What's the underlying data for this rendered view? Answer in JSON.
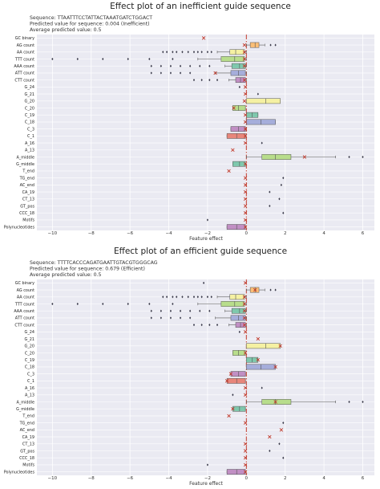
{
  "chart_data": [
    {
      "type": "box",
      "title": "Effect plot of an inefficient guide sequence",
      "info_lines": [
        "Sequence: TTAATTTCCTATTACTAAATGATCTGGACT",
        "Predicted value for sequence: 0.004 (Inefficient)",
        "Average predicted value: 0.5"
      ],
      "xlabel": "Feature effect",
      "xlim": [
        -10.8,
        6.6
      ],
      "xticks": [
        "−10",
        "−8",
        "−6",
        "−4",
        "−2",
        "0",
        "2",
        "4",
        "6"
      ],
      "xtick_values": [
        -10,
        -8,
        -6,
        -4,
        -2,
        0,
        2,
        4,
        6
      ],
      "reference_line": 0,
      "grid": true,
      "categories": [
        "GC binary",
        "AG count",
        "AA count",
        "TTT count",
        "AAA count",
        "ATT count",
        "CTT count",
        "G_24",
        "G_21",
        "G_20",
        "C_20",
        "C_19",
        "C_18",
        "C_3",
        "C_1",
        "A_16",
        "A_13",
        "A_middle",
        "G_middle",
        "T_end",
        "TG_end",
        "AC_end",
        "CA_19",
        "CT_13",
        "GT_pos",
        "CCC_18",
        "Motifs",
        "Polynucleotides"
      ],
      "boxes": [
        {
          "feature": "GC binary",
          "q1": null,
          "median": null,
          "q3": null,
          "whisker_low": null,
          "whisker_high": null,
          "outliers": [],
          "marker": -2.2
        },
        {
          "feature": "AG count",
          "q1": 0.2,
          "median": 0.45,
          "q3": 0.65,
          "whisker_low": 0.0,
          "whisker_high": 0.95,
          "outliers": [
            1.25,
            1.5
          ],
          "marker": -0.1
        },
        {
          "feature": "AA count",
          "q1": -0.85,
          "median": -0.55,
          "q3": -0.1,
          "whisker_low": -1.5,
          "whisker_high": 0.0,
          "outliers": [
            -4.3,
            -4.1,
            -3.8,
            -3.6,
            -3.3,
            -3.0,
            -2.7,
            -2.5,
            -2.3,
            -2.0,
            -1.8
          ],
          "marker": -0.1
        },
        {
          "feature": "TTT count",
          "q1": -1.3,
          "median": -0.6,
          "q3": -0.1,
          "whisker_low": -2.5,
          "whisker_high": 0.0,
          "outliers": [
            -10.0,
            -8.7,
            -7.4,
            -6.1,
            -5.0,
            -3.8
          ],
          "marker": -0.1
        },
        {
          "feature": "AAA count",
          "q1": -0.75,
          "median": -0.35,
          "q3": -0.05,
          "whisker_low": -1.1,
          "whisker_high": 0.0,
          "outliers": [
            -4.9,
            -4.4,
            -3.9,
            -3.4,
            -2.9,
            -2.4,
            -1.9
          ],
          "marker": -0.1
        },
        {
          "feature": "ATT count",
          "q1": -0.8,
          "median": -0.4,
          "q3": -0.05,
          "whisker_low": -1.6,
          "whisker_high": 0.0,
          "outliers": [
            -4.9,
            -4.4,
            -3.9,
            -3.4,
            -2.9
          ],
          "marker": -1.6
        },
        {
          "feature": "CTT count",
          "q1": -0.55,
          "median": -0.3,
          "q3": -0.05,
          "whisker_low": -0.9,
          "whisker_high": 0.0,
          "outliers": [
            -2.7,
            -2.3,
            -1.9,
            -1.5
          ],
          "marker": -0.1
        },
        {
          "feature": "G_24",
          "q1": null,
          "median": null,
          "q3": null,
          "whisker_low": null,
          "whisker_high": null,
          "outliers": [
            -0.35
          ],
          "marker": -0.05
        },
        {
          "feature": "G_21",
          "q1": null,
          "median": null,
          "q3": null,
          "whisker_low": null,
          "whisker_high": null,
          "outliers": [
            0.6
          ],
          "marker": -0.05
        },
        {
          "feature": "G_20",
          "q1": 0.0,
          "median": 1.0,
          "q3": 1.75,
          "whisker_low": 0.0,
          "whisker_high": 1.75,
          "outliers": [],
          "marker": -0.1
        },
        {
          "feature": "C_20",
          "q1": -0.7,
          "median": -0.4,
          "q3": -0.05,
          "whisker_low": -0.7,
          "whisker_high": -0.05,
          "outliers": [],
          "marker": -0.65
        },
        {
          "feature": "C_19",
          "q1": 0.0,
          "median": 0.3,
          "q3": 0.6,
          "whisker_low": 0.0,
          "whisker_high": 0.6,
          "outliers": [],
          "marker": -0.05
        },
        {
          "feature": "C_18",
          "q1": 0.0,
          "median": 0.75,
          "q3": 1.5,
          "whisker_low": 0.0,
          "whisker_high": 1.5,
          "outliers": [],
          "marker": -0.05
        },
        {
          "feature": "C_3",
          "q1": -0.8,
          "median": -0.4,
          "q3": -0.05,
          "whisker_low": -0.8,
          "whisker_high": -0.05,
          "outliers": [],
          "marker": -0.05
        },
        {
          "feature": "C_1",
          "q1": -1.0,
          "median": -0.5,
          "q3": -0.05,
          "whisker_low": -1.0,
          "whisker_high": -0.05,
          "outliers": [],
          "marker": -0.05
        },
        {
          "feature": "A_16",
          "q1": null,
          "median": null,
          "q3": null,
          "whisker_low": null,
          "whisker_high": null,
          "outliers": [
            0.8
          ],
          "marker": -0.05
        },
        {
          "feature": "A_13",
          "q1": null,
          "median": null,
          "q3": null,
          "whisker_low": null,
          "whisker_high": null,
          "outliers": [],
          "marker": -0.7
        },
        {
          "feature": "A_middle",
          "q1": 0.8,
          "median": 1.5,
          "q3": 2.3,
          "whisker_low": 0.0,
          "whisker_high": 4.6,
          "outliers": [
            5.3,
            6.0
          ],
          "marker": 3.0
        },
        {
          "feature": "G_middle",
          "q1": -0.7,
          "median": -0.35,
          "q3": -0.05,
          "whisker_low": -0.7,
          "whisker_high": -0.05,
          "outliers": [],
          "marker": -0.05
        },
        {
          "feature": "T_end",
          "q1": null,
          "median": null,
          "q3": null,
          "whisker_low": null,
          "whisker_high": null,
          "outliers": [],
          "marker": -0.9
        },
        {
          "feature": "TG_end",
          "q1": null,
          "median": null,
          "q3": null,
          "whisker_low": null,
          "whisker_high": null,
          "outliers": [
            1.9
          ],
          "marker": -0.05
        },
        {
          "feature": "AC_end",
          "q1": null,
          "median": null,
          "q3": null,
          "whisker_low": null,
          "whisker_high": null,
          "outliers": [
            1.8
          ],
          "marker": -0.05
        },
        {
          "feature": "CA_19",
          "q1": null,
          "median": null,
          "q3": null,
          "whisker_low": null,
          "whisker_high": null,
          "outliers": [
            1.2
          ],
          "marker": -0.05
        },
        {
          "feature": "CT_13",
          "q1": null,
          "median": null,
          "q3": null,
          "whisker_low": null,
          "whisker_high": null,
          "outliers": [
            1.7
          ],
          "marker": -0.05
        },
        {
          "feature": "GT_pos",
          "q1": null,
          "median": null,
          "q3": null,
          "whisker_low": null,
          "whisker_high": null,
          "outliers": [
            1.2
          ],
          "marker": -0.05
        },
        {
          "feature": "CCC_18",
          "q1": null,
          "median": null,
          "q3": null,
          "whisker_low": null,
          "whisker_high": null,
          "outliers": [
            1.9
          ],
          "marker": -0.05
        },
        {
          "feature": "Motifs",
          "q1": null,
          "median": null,
          "q3": null,
          "whisker_low": null,
          "whisker_high": null,
          "outliers": [
            -2.0
          ],
          "marker": -0.05
        },
        {
          "feature": "Polynucleotides",
          "q1": -1.0,
          "median": -0.5,
          "q3": -0.05,
          "whisker_low": -1.0,
          "whisker_high": -0.05,
          "outliers": [],
          "marker": -0.05
        }
      ]
    },
    {
      "type": "box",
      "title": "Effect plot of an efficient guide sequence",
      "info_lines": [
        "Sequence: TTTTCACCCAGATGAATTGTACGTGGGCAG",
        "Predicted value for sequence: 0.679 (Efficient)",
        "Average predicted value: 0.5"
      ],
      "xlabel": "Feature effect",
      "xlim": [
        -10.8,
        6.6
      ],
      "xticks": [
        "−10",
        "−8",
        "−6",
        "−4",
        "−2",
        "0",
        "2",
        "4",
        "6"
      ],
      "xtick_values": [
        -10,
        -8,
        -6,
        -4,
        -2,
        0,
        2,
        4,
        6
      ],
      "reference_line": 0,
      "grid": true,
      "categories": [
        "GC binary",
        "AG count",
        "AA count",
        "TTT count",
        "AAA count",
        "ATT count",
        "CTT count",
        "G_24",
        "G_21",
        "G_20",
        "C_20",
        "C_19",
        "C_18",
        "C_3",
        "C_1",
        "A_16",
        "A_13",
        "A_middle",
        "G_middle",
        "T_end",
        "TG_end",
        "AC_end",
        "CA_19",
        "CT_13",
        "GT_pos",
        "CCC_18",
        "Motifs",
        "Polynucleotides"
      ],
      "boxes": [
        {
          "feature": "GC binary",
          "q1": null,
          "median": null,
          "q3": null,
          "whisker_low": null,
          "whisker_high": null,
          "outliers": [
            -2.2
          ],
          "marker": -0.05
        },
        {
          "feature": "AG count",
          "q1": 0.2,
          "median": 0.45,
          "q3": 0.65,
          "whisker_low": 0.0,
          "whisker_high": 0.95,
          "outliers": [
            1.25,
            1.5
          ],
          "marker": 0.45
        },
        {
          "feature": "AA count",
          "q1": -0.85,
          "median": -0.55,
          "q3": -0.1,
          "whisker_low": -1.5,
          "whisker_high": 0.0,
          "outliers": [
            -4.3,
            -4.1,
            -3.8,
            -3.6,
            -3.3,
            -3.0,
            -2.7,
            -2.5,
            -2.3,
            -2.0,
            -1.8
          ],
          "marker": -0.1
        },
        {
          "feature": "TTT count",
          "q1": -1.3,
          "median": -0.6,
          "q3": -0.1,
          "whisker_low": -2.5,
          "whisker_high": 0.0,
          "outliers": [
            -10.0,
            -8.7,
            -7.4,
            -6.1,
            -5.0,
            -3.8
          ],
          "marker": -0.1
        },
        {
          "feature": "AAA count",
          "q1": -0.75,
          "median": -0.35,
          "q3": -0.05,
          "whisker_low": -1.1,
          "whisker_high": 0.0,
          "outliers": [
            -4.9,
            -4.4,
            -3.9,
            -3.4,
            -2.9,
            -2.4,
            -1.9
          ],
          "marker": -0.1
        },
        {
          "feature": "ATT count",
          "q1": -0.8,
          "median": -0.4,
          "q3": -0.05,
          "whisker_low": -1.6,
          "whisker_high": 0.0,
          "outliers": [
            -4.9,
            -4.4,
            -3.9,
            -3.4,
            -2.9
          ],
          "marker": -0.1
        },
        {
          "feature": "CTT count",
          "q1": -0.55,
          "median": -0.3,
          "q3": -0.05,
          "whisker_low": -0.9,
          "whisker_high": 0.0,
          "outliers": [
            -2.7,
            -2.3,
            -1.9,
            -1.5
          ],
          "marker": -0.1
        },
        {
          "feature": "G_24",
          "q1": null,
          "median": null,
          "q3": null,
          "whisker_low": null,
          "whisker_high": null,
          "outliers": [
            -0.35
          ],
          "marker": -0.05
        },
        {
          "feature": "G_21",
          "q1": null,
          "median": null,
          "q3": null,
          "whisker_low": null,
          "whisker_high": null,
          "outliers": [],
          "marker": 0.6
        },
        {
          "feature": "G_20",
          "q1": 0.0,
          "median": 1.0,
          "q3": 1.75,
          "whisker_low": 0.0,
          "whisker_high": 1.75,
          "outliers": [],
          "marker": 1.75
        },
        {
          "feature": "C_20",
          "q1": -0.7,
          "median": -0.4,
          "q3": -0.05,
          "whisker_low": -0.7,
          "whisker_high": -0.05,
          "outliers": [],
          "marker": -0.05
        },
        {
          "feature": "C_19",
          "q1": 0.0,
          "median": 0.3,
          "q3": 0.6,
          "whisker_low": 0.0,
          "whisker_high": 0.6,
          "outliers": [],
          "marker": 0.6
        },
        {
          "feature": "C_18",
          "q1": 0.0,
          "median": 0.75,
          "q3": 1.5,
          "whisker_low": 0.0,
          "whisker_high": 1.5,
          "outliers": [],
          "marker": 1.5
        },
        {
          "feature": "C_3",
          "q1": -0.8,
          "median": -0.4,
          "q3": -0.05,
          "whisker_low": -0.8,
          "whisker_high": -0.05,
          "outliers": [],
          "marker": -0.8
        },
        {
          "feature": "C_1",
          "q1": -1.0,
          "median": -0.5,
          "q3": -0.05,
          "whisker_low": -1.0,
          "whisker_high": -0.05,
          "outliers": [],
          "marker": -1.0
        },
        {
          "feature": "A_16",
          "q1": null,
          "median": null,
          "q3": null,
          "whisker_low": null,
          "whisker_high": null,
          "outliers": [
            0.8
          ],
          "marker": -0.05
        },
        {
          "feature": "A_13",
          "q1": null,
          "median": null,
          "q3": null,
          "whisker_low": null,
          "whisker_high": null,
          "outliers": [
            -0.7
          ],
          "marker": -0.05
        },
        {
          "feature": "A_middle",
          "q1": 0.8,
          "median": 1.5,
          "q3": 2.3,
          "whisker_low": 0.0,
          "whisker_high": 4.6,
          "outliers": [
            5.3,
            6.0
          ],
          "marker": 1.5
        },
        {
          "feature": "G_middle",
          "q1": -0.7,
          "median": -0.35,
          "q3": -0.05,
          "whisker_low": -0.7,
          "whisker_high": -0.05,
          "outliers": [],
          "marker": -0.7
        },
        {
          "feature": "T_end",
          "q1": null,
          "median": null,
          "q3": null,
          "whisker_low": null,
          "whisker_high": null,
          "outliers": [],
          "marker": -0.9
        },
        {
          "feature": "TG_end",
          "q1": null,
          "median": null,
          "q3": null,
          "whisker_low": null,
          "whisker_high": null,
          "outliers": [
            1.9
          ],
          "marker": -0.05
        },
        {
          "feature": "AC_end",
          "q1": null,
          "median": null,
          "q3": null,
          "whisker_low": null,
          "whisker_high": null,
          "outliers": [],
          "marker": 1.8
        },
        {
          "feature": "CA_19",
          "q1": null,
          "median": null,
          "q3": null,
          "whisker_low": null,
          "whisker_high": null,
          "outliers": [],
          "marker": 1.2
        },
        {
          "feature": "CT_13",
          "q1": null,
          "median": null,
          "q3": null,
          "whisker_low": null,
          "whisker_high": null,
          "outliers": [
            1.7
          ],
          "marker": -0.05
        },
        {
          "feature": "GT_pos",
          "q1": null,
          "median": null,
          "q3": null,
          "whisker_low": null,
          "whisker_high": null,
          "outliers": [
            1.2
          ],
          "marker": -0.05
        },
        {
          "feature": "CCC_18",
          "q1": null,
          "median": null,
          "q3": null,
          "whisker_low": null,
          "whisker_high": null,
          "outliers": [
            1.9
          ],
          "marker": -0.05
        },
        {
          "feature": "Motifs",
          "q1": null,
          "median": null,
          "q3": null,
          "whisker_low": null,
          "whisker_high": null,
          "outliers": [
            -2.0
          ],
          "marker": -0.05
        },
        {
          "feature": "Polynucleotides",
          "q1": -1.0,
          "median": -0.5,
          "q3": -0.05,
          "whisker_low": -1.0,
          "whisker_high": -0.05,
          "outliers": [],
          "marker": -0.05
        }
      ]
    }
  ],
  "colors": {
    "background": "#eaeaf2",
    "grid": "#ffffff",
    "reference_line": "#c0392b",
    "marker": "#c0392b",
    "palette": [
      "#e8867b",
      "#fbbf77",
      "#f5f1a3",
      "#b8dd8c",
      "#7fc8ad",
      "#a6aedb",
      "#c18fc4"
    ]
  }
}
